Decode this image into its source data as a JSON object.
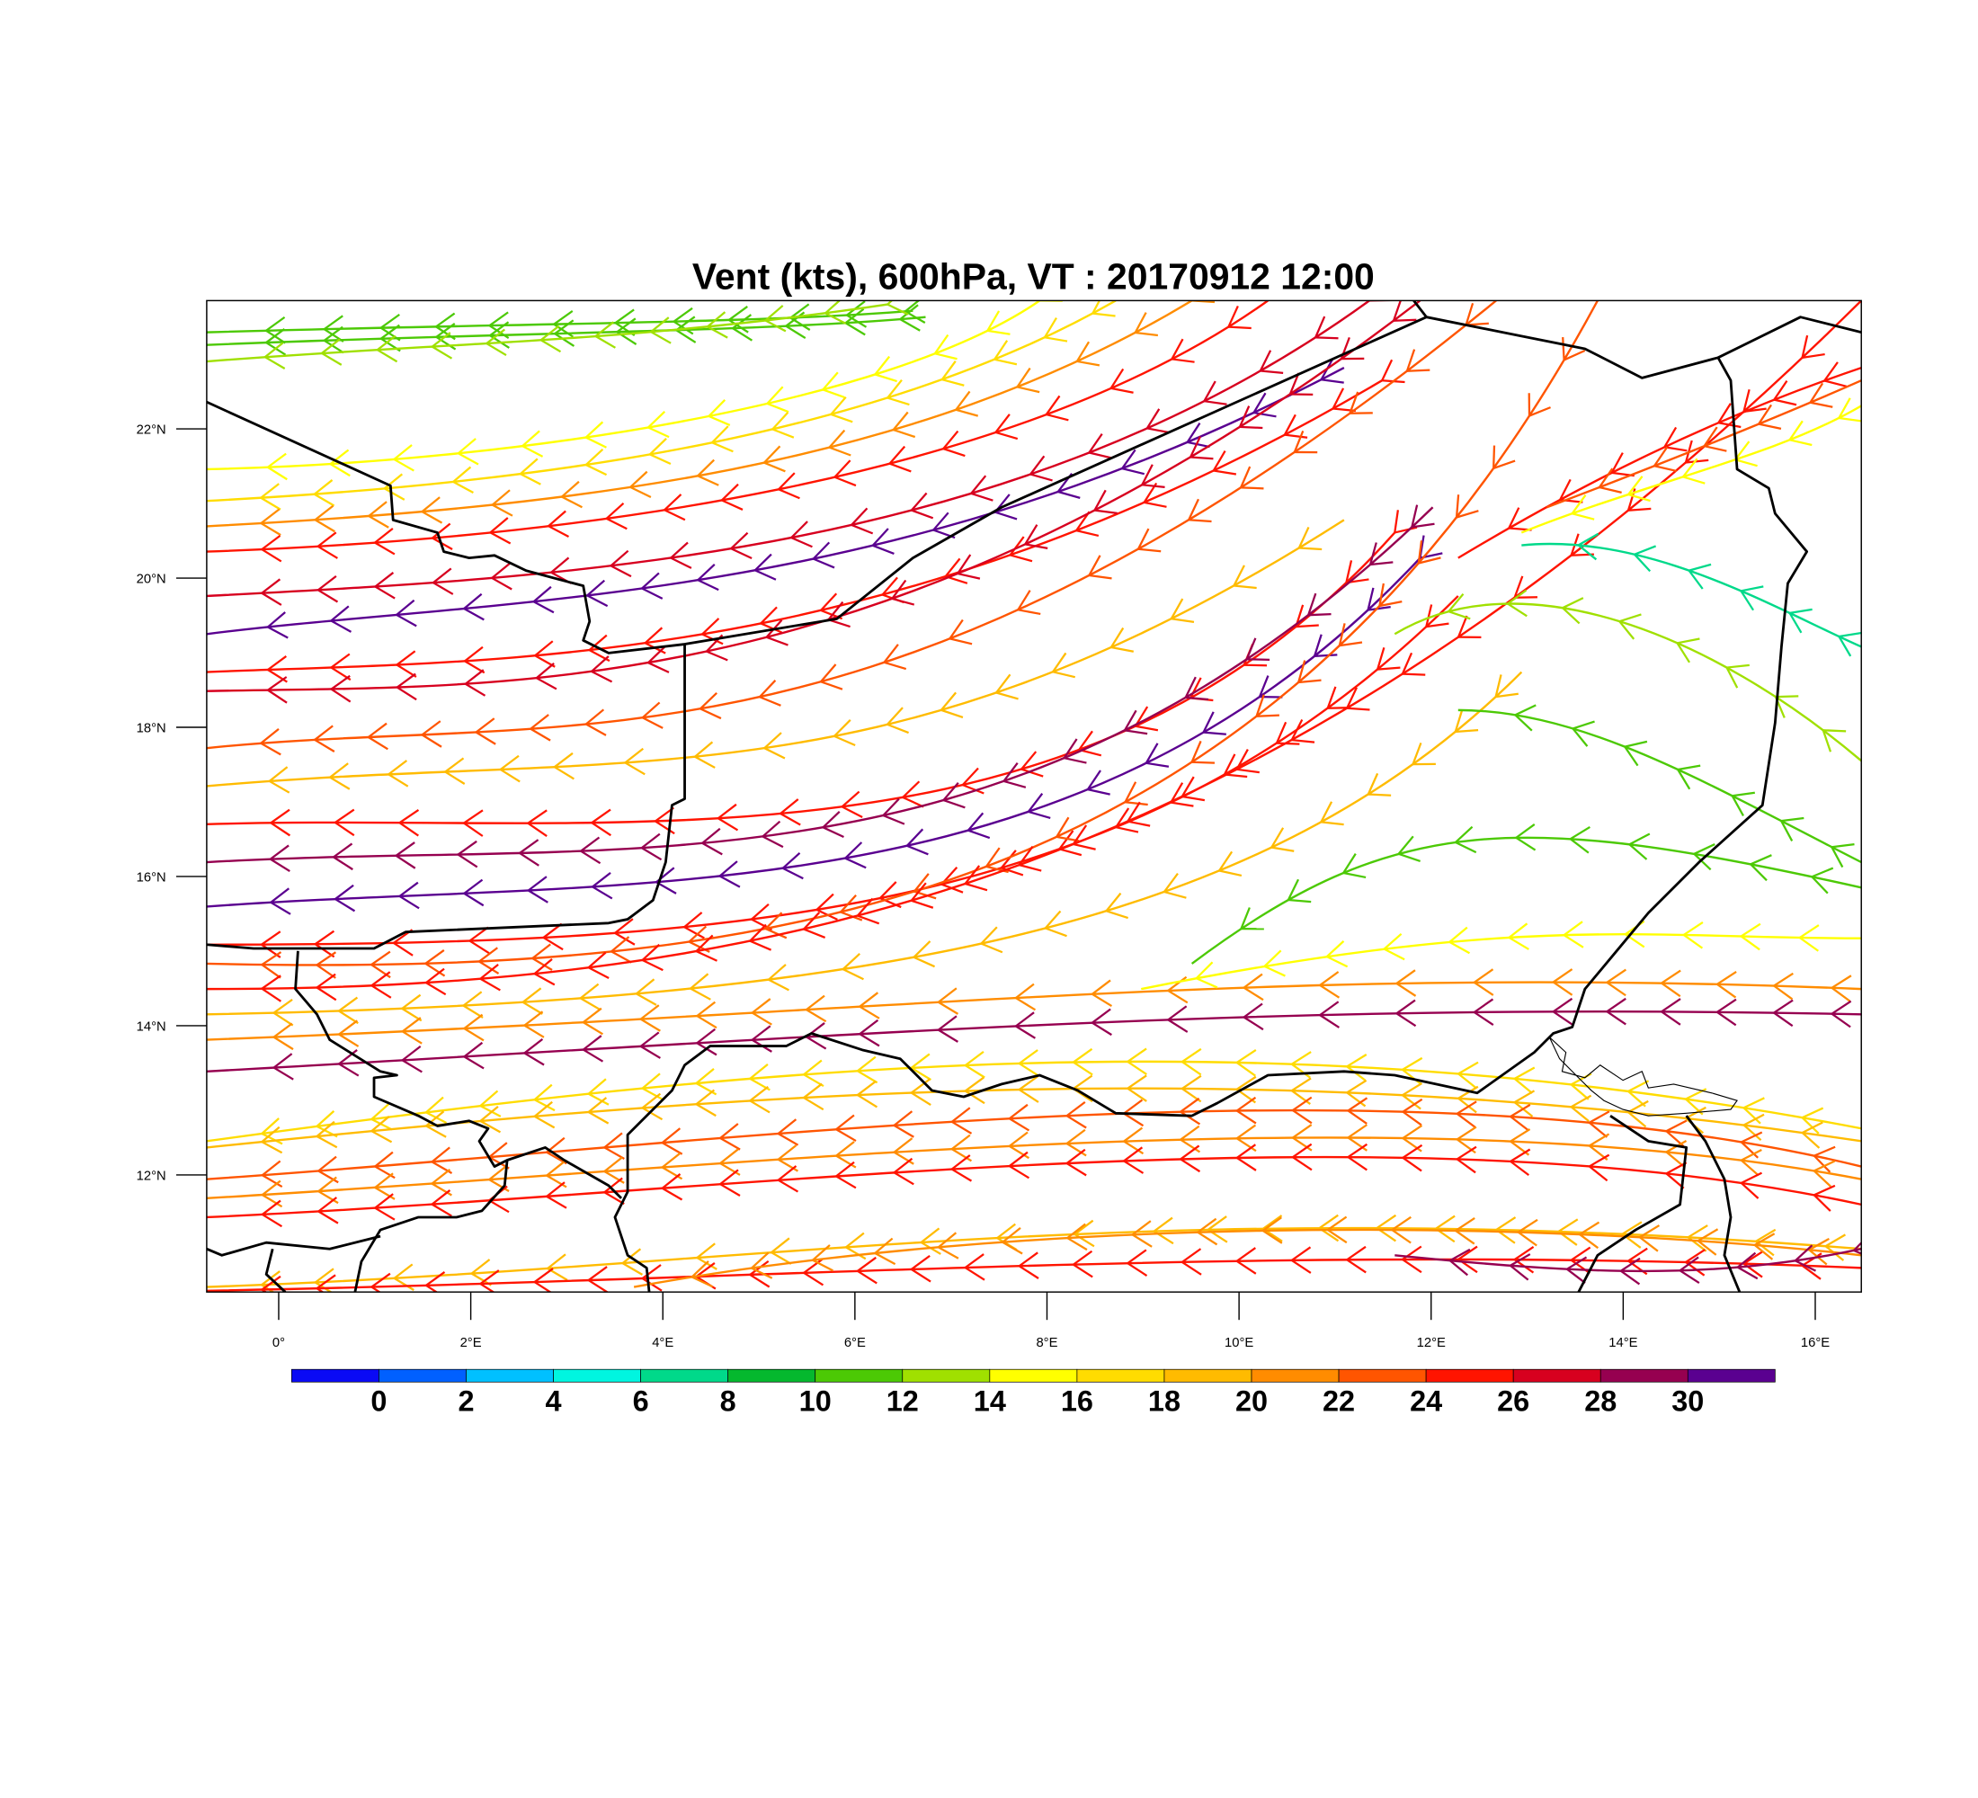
{
  "title": "Vent (kts), 600hPa, VT : 20170912  12:00",
  "map": {
    "lon_range": [
      -0.75,
      16.48
    ],
    "lat_range": [
      10.43,
      23.72
    ],
    "x_ticks": [
      {
        "lon": 0,
        "label": "0°"
      },
      {
        "lon": 2,
        "label": "2°E"
      },
      {
        "lon": 4,
        "label": "4°E"
      },
      {
        "lon": 6,
        "label": "6°E"
      },
      {
        "lon": 8,
        "label": "8°E"
      },
      {
        "lon": 10,
        "label": "10°E"
      },
      {
        "lon": 12,
        "label": "12°E"
      },
      {
        "lon": 14,
        "label": "14°E"
      },
      {
        "lon": 16,
        "label": "16°E"
      }
    ],
    "y_ticks": [
      {
        "lat": 12,
        "label": "12°N"
      },
      {
        "lat": 14,
        "label": "14°N"
      },
      {
        "lat": 16,
        "label": "16°N"
      },
      {
        "lat": 18,
        "label": "18°N"
      },
      {
        "lat": 20,
        "label": "20°N"
      },
      {
        "lat": 22,
        "label": "22°N"
      }
    ]
  },
  "colorbar": {
    "labels": [
      "0",
      "2",
      "4",
      "6",
      "8",
      "10",
      "12",
      "14",
      "16",
      "18",
      "20",
      "22",
      "24",
      "26",
      "28",
      "30"
    ],
    "colors": [
      "#0a0af5",
      "#0060ff",
      "#00c0ff",
      "#00f5e0",
      "#00d98a",
      "#05b82e",
      "#4cc905",
      "#a0e000",
      "#ffff00",
      "#ffdc00",
      "#ffbb00",
      "#ff8c00",
      "#ff5500",
      "#ff1400",
      "#d7001f",
      "#960050",
      "#5a0090"
    ]
  }
}
